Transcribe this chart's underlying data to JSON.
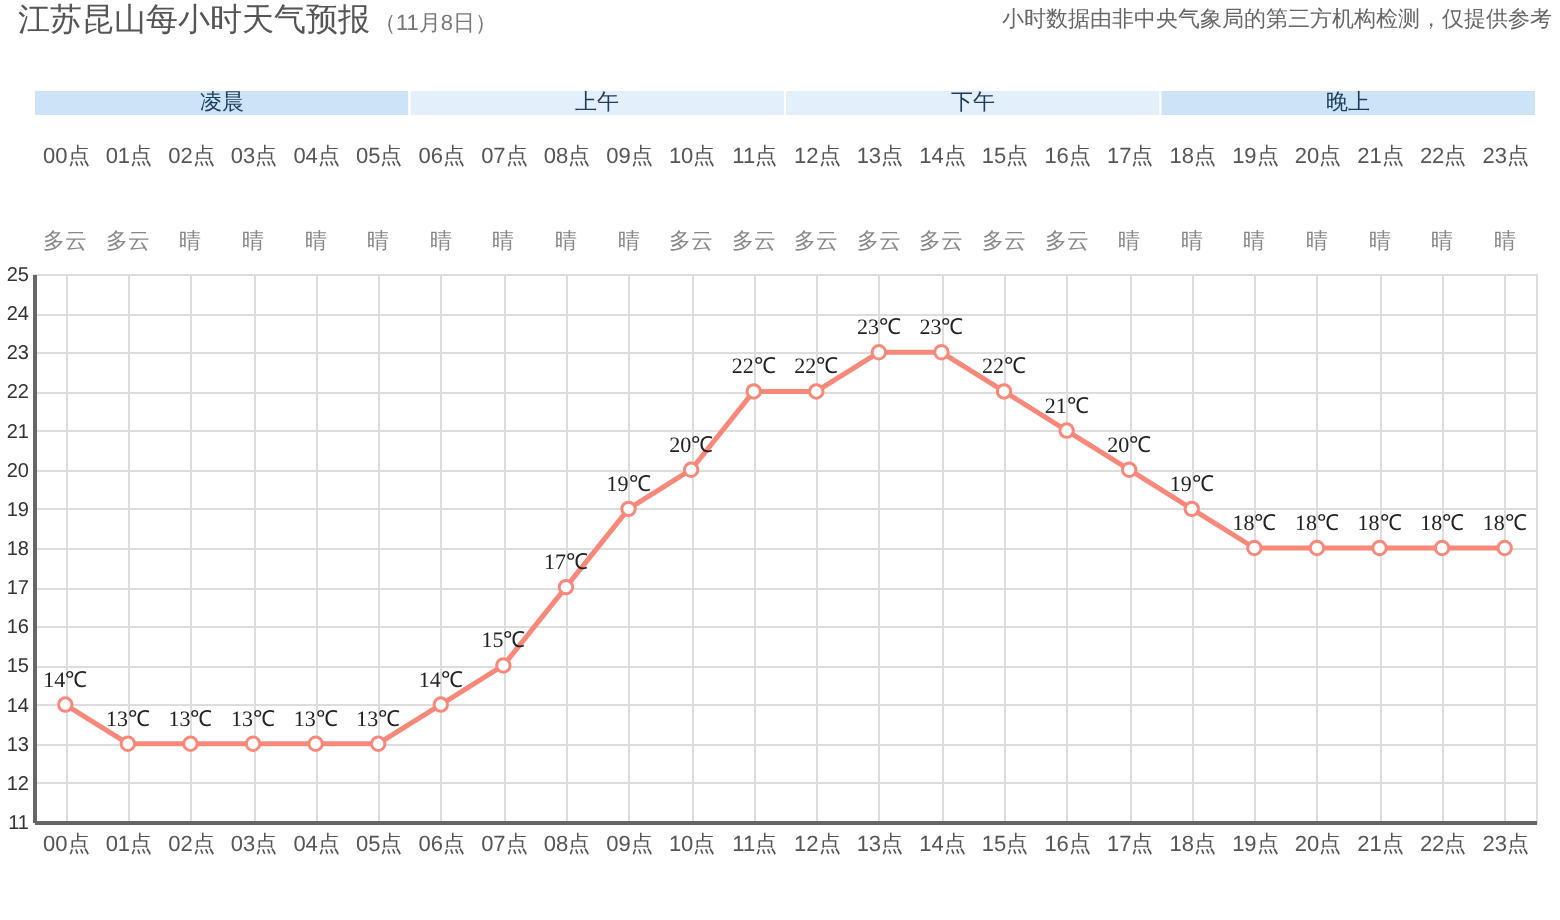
{
  "chart_data": {
    "type": "line",
    "title": "江苏昆山每小时天气预报",
    "subtitle": "（11月8日）",
    "annotations": [
      "小时数据由非中央气象局的第三方机构检测，仅提供参考",
      "凌晨",
      "上午",
      "下午",
      "晚上",
      "多云",
      "多云",
      "晴",
      "晴",
      "晴",
      "晴",
      "晴",
      "晴",
      "晴",
      "晴",
      "多云",
      "多云",
      "多云",
      "多云",
      "多云",
      "多云",
      "多云",
      "晴",
      "晴",
      "晴",
      "晴",
      "晴",
      "晴",
      "晴"
    ],
    "categories": [
      "00点",
      "01点",
      "02点",
      "03点",
      "04点",
      "05点",
      "06点",
      "07点",
      "08点",
      "09点",
      "10点",
      "11点",
      "12点",
      "13点",
      "14点",
      "15点",
      "16点",
      "17点",
      "18点",
      "19点",
      "20点",
      "21点",
      "22点",
      "23点"
    ],
    "values": [
      14,
      13,
      13,
      13,
      13,
      13,
      14,
      15,
      17,
      19,
      20,
      22,
      22,
      23,
      23,
      22,
      21,
      20,
      19,
      18,
      18,
      18,
      18,
      18
    ],
    "value_labels": [
      "14℃",
      "13℃",
      "13℃",
      "13℃",
      "13℃",
      "13℃",
      "14℃",
      "15℃",
      "17℃",
      "19℃",
      "20℃",
      "22℃",
      "22℃",
      "23℃",
      "23℃",
      "22℃",
      "21℃",
      "20℃",
      "19℃",
      "18℃",
      "18℃",
      "18℃",
      "18℃",
      "18℃"
    ],
    "color": "#f8887a",
    "ylim": [
      11,
      25
    ],
    "yticks": [
      11,
      12,
      13,
      14,
      15,
      16,
      17,
      18,
      19,
      20,
      21,
      22,
      23,
      24,
      25
    ],
    "grid": true,
    "marker": "circle",
    "line_style": "solid"
  }
}
